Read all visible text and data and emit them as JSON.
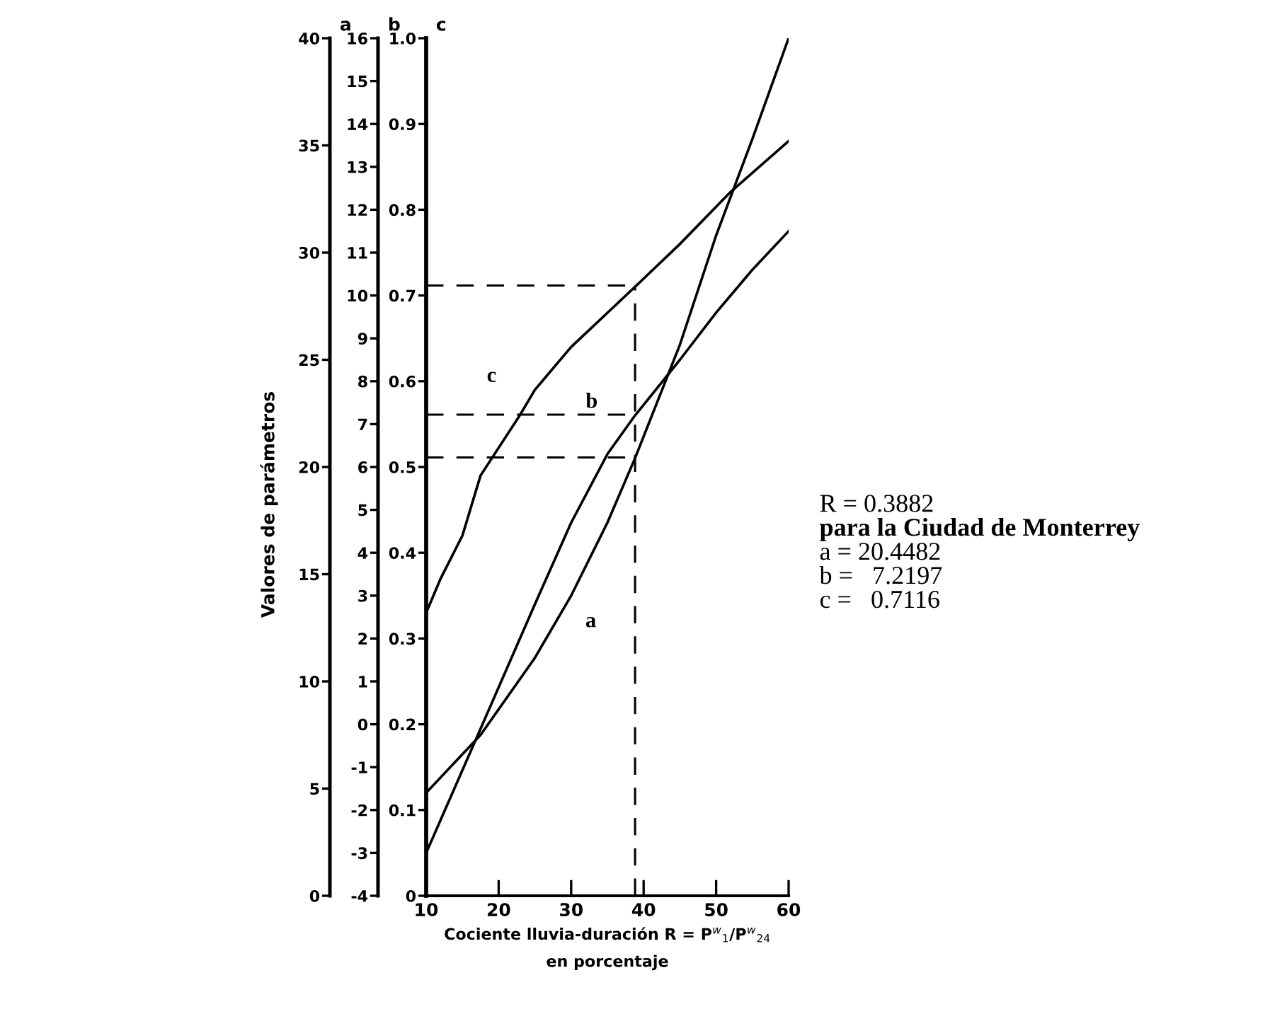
{
  "chart_data": {
    "type": "line",
    "ylabel": "Valores de parámetros",
    "xlabel": "Cociente lluvia-duración R = P$^{w}$$_{1}$/P$^{w}$$_{24}$\nen porcentaje",
    "xlim": [
      10,
      60
    ],
    "xticks": [
      10,
      20,
      30,
      40,
      50,
      60
    ],
    "ylim": [
      0,
      40
    ],
    "yticks": [
      0,
      5,
      10,
      15,
      20,
      25,
      30,
      35,
      40
    ],
    "y2lim": [
      -4,
      16
    ],
    "y2ticks": [
      -4,
      -3,
      -2,
      -1,
      0,
      1,
      2,
      3,
      4,
      5,
      6,
      7,
      8,
      9,
      10,
      11,
      12,
      13,
      14,
      15,
      16
    ],
    "y3lim": [
      0,
      1.0
    ],
    "y3ticks": [
      0,
      0.1,
      0.2,
      0.3,
      0.4,
      0.5,
      0.6,
      0.7,
      0.8,
      0.9,
      {
        "value": 1.0,
        "label": "1.0"
      }
    ],
    "grid": false,
    "legend": false,
    "marker": "none",
    "line_style": "solid",
    "series": [
      {
        "name": "a",
        "color": "#000000",
        "axis": "y",
        "x": [
          10,
          17.5,
          25,
          30,
          35,
          38.8,
          45,
          50,
          55,
          60
        ],
        "values": [
          4.8,
          7.5,
          11.1,
          14.0,
          17.4,
          20.4,
          25.7,
          30.8,
          35.3,
          40
        ]
      },
      {
        "name": "b",
        "color": "#000000",
        "axis": "y2",
        "x": [
          10,
          17,
          25,
          30,
          35,
          38.8,
          45,
          50,
          55,
          60
        ],
        "values": [
          -3.0,
          -0.3,
          2.8,
          4.7,
          6.3,
          7.2,
          8.5,
          9.6,
          10.6,
          11.5
        ]
      },
      {
        "name": "c",
        "color": "#000000",
        "axis": "y3",
        "x": [
          10,
          12,
          15,
          17.5,
          22.9,
          25,
          30,
          38.8,
          45,
          51.9,
          60
        ],
        "values": [
          0.33,
          0.37,
          0.42,
          0.49,
          0.56,
          0.59,
          0.64,
          0.71,
          0.76,
          0.82,
          0.88
        ]
      }
    ],
    "ref_lines": [
      {
        "axis": "x",
        "value": 38.82,
        "line_style": "dashed",
        "color": "#000000"
      },
      {
        "axis": "y",
        "value": 20.4482,
        "line_style": "dashed",
        "color": "#000000"
      },
      {
        "axis": "y2",
        "value": 7.2197,
        "line_style": "dashed",
        "color": "#000000"
      },
      {
        "axis": "y3",
        "value": 0.7116,
        "line_style": "dashed",
        "color": "#000000"
      }
    ],
    "annotations": [
      "R = 0.3882",
      "para la Ciudad de Monterrey",
      "a = 20.4482",
      "b =   7.2197",
      "c =   0.7116"
    ]
  }
}
